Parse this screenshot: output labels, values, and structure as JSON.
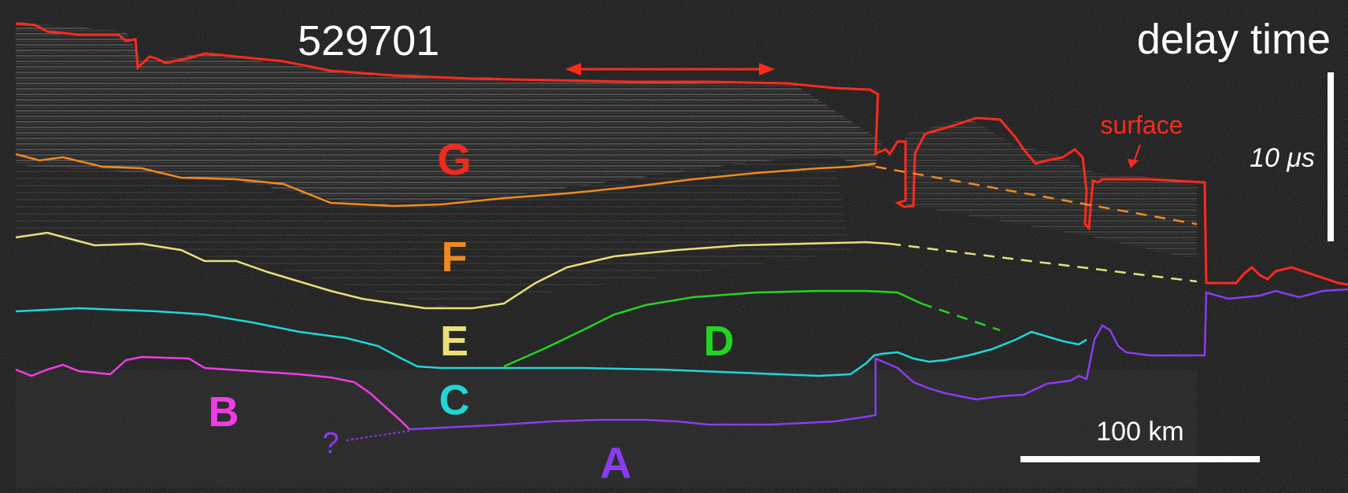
{
  "figure": {
    "track_id": "529701",
    "mode_label": "delay time",
    "time_scale_label": "10 μs",
    "distance_scale_label": "100 km",
    "surface_label": "surface",
    "question_mark": "?"
  },
  "units": [
    {
      "id": "A",
      "label": "A",
      "color": "#8a3cf0"
    },
    {
      "id": "B",
      "label": "B",
      "color": "#f03ce6"
    },
    {
      "id": "C",
      "label": "C",
      "color": "#21d6d6"
    },
    {
      "id": "D",
      "label": "D",
      "color": "#21d621"
    },
    {
      "id": "E",
      "label": "E",
      "color": "#e8e07a"
    },
    {
      "id": "F",
      "label": "F",
      "color": "#f08a1e"
    },
    {
      "id": "G",
      "label": "G",
      "color": "#f02a1e"
    }
  ],
  "colors": {
    "background": "#0e0e0e",
    "text": "#ffffff",
    "surface": "#ff2a1e",
    "arrow": "#ff2a1e",
    "A": "#8a3cf0",
    "B": "#f03ce6",
    "C": "#21d6d6",
    "D": "#21d621",
    "E": "#e8e07a",
    "F": "#f08a1e",
    "G": "#f02a1e"
  }
}
